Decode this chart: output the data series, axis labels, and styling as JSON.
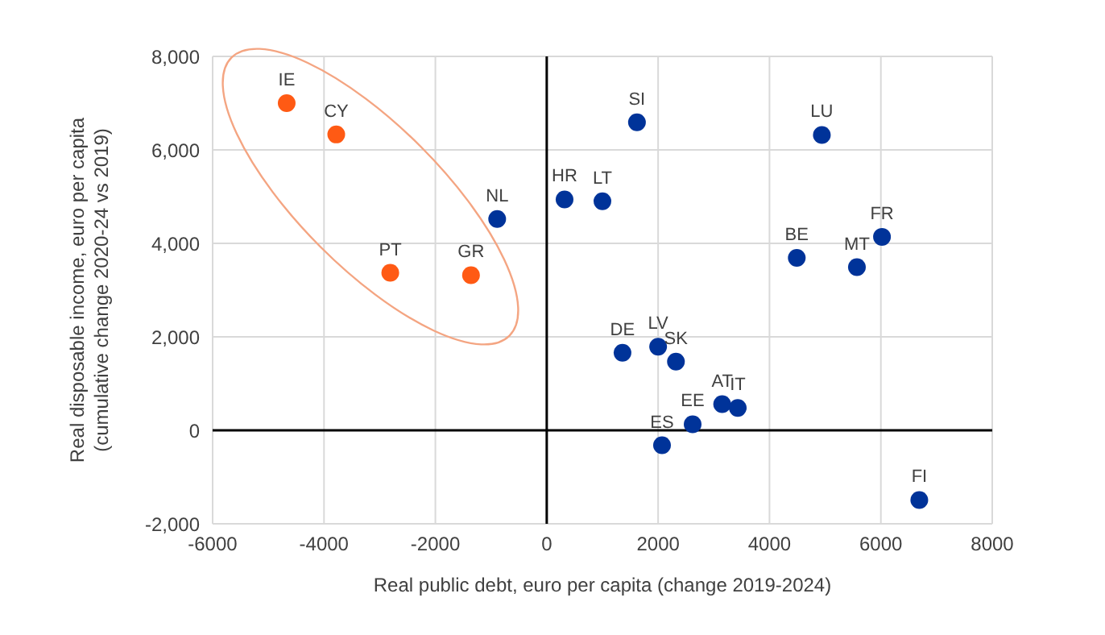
{
  "chart_data": {
    "type": "scatter",
    "xlabel": "Real public debt, euro per capita (change 2019-2024)",
    "ylabel": "Real disposable income, euro per capita (cumulative change 2020-24 vs 2019)",
    "xlim": [
      -6000,
      8000
    ],
    "xticks": [
      -6000,
      -4000,
      -2000,
      0,
      2000,
      4000,
      6000,
      8000
    ],
    "ylim": [
      -2000,
      8000
    ],
    "yticks": [
      {
        "value": -2000,
        "label": "-2,000"
      },
      {
        "value": 0,
        "label": "0"
      },
      {
        "value": 2000,
        "label": "2,000"
      },
      {
        "value": 4000,
        "label": "4,000"
      },
      {
        "value": 6000,
        "label": "6,000"
      },
      {
        "value": 8000,
        "label": "8,000"
      }
    ],
    "grid": true,
    "marker": "circle",
    "series": [
      {
        "color": "#ff5a14",
        "x": [
          -4670,
          -3780,
          -2810,
          -1360
        ],
        "values": [
          7000,
          6330,
          3370,
          3320
        ]
      },
      {
        "color": "#003399",
        "x": [
          -890,
          320,
          1000,
          1620,
          4940,
          4490,
          5570,
          6020,
          1360,
          2000,
          2320,
          3150,
          3430,
          2620,
          2070,
          6690
        ],
        "values": [
          4520,
          4940,
          4900,
          6590,
          6320,
          3690,
          3490,
          4140,
          1660,
          1790,
          1470,
          560,
          480,
          130,
          -320,
          -1490
        ]
      }
    ],
    "annotations": [
      {
        "text": "IE",
        "x": -4670,
        "y": 7000
      },
      {
        "text": "CY",
        "x": -3780,
        "y": 6330
      },
      {
        "text": "PT",
        "x": -2810,
        "y": 3370
      },
      {
        "text": "GR",
        "x": -1360,
        "y": 3320
      },
      {
        "text": "NL",
        "x": -890,
        "y": 4520
      },
      {
        "text": "HR",
        "x": 320,
        "y": 4940
      },
      {
        "text": "LT",
        "x": 1000,
        "y": 4900
      },
      {
        "text": "SI",
        "x": 1620,
        "y": 6590
      },
      {
        "text": "LU",
        "x": 4940,
        "y": 6320
      },
      {
        "text": "BE",
        "x": 4490,
        "y": 3690
      },
      {
        "text": "MT",
        "x": 5570,
        "y": 3490
      },
      {
        "text": "FR",
        "x": 6020,
        "y": 4140
      },
      {
        "text": "DE",
        "x": 1360,
        "y": 1660
      },
      {
        "text": "LV",
        "x": 2000,
        "y": 1790
      },
      {
        "text": "SK",
        "x": 2320,
        "y": 1470
      },
      {
        "text": "AT",
        "x": 3150,
        "y": 560
      },
      {
        "text": "IT",
        "x": 3430,
        "y": 480
      },
      {
        "text": "EE",
        "x": 2620,
        "y": 130
      },
      {
        "text": "ES",
        "x": 2070,
        "y": -320
      },
      {
        "text": "FI",
        "x": 6690,
        "y": -1490
      }
    ]
  }
}
